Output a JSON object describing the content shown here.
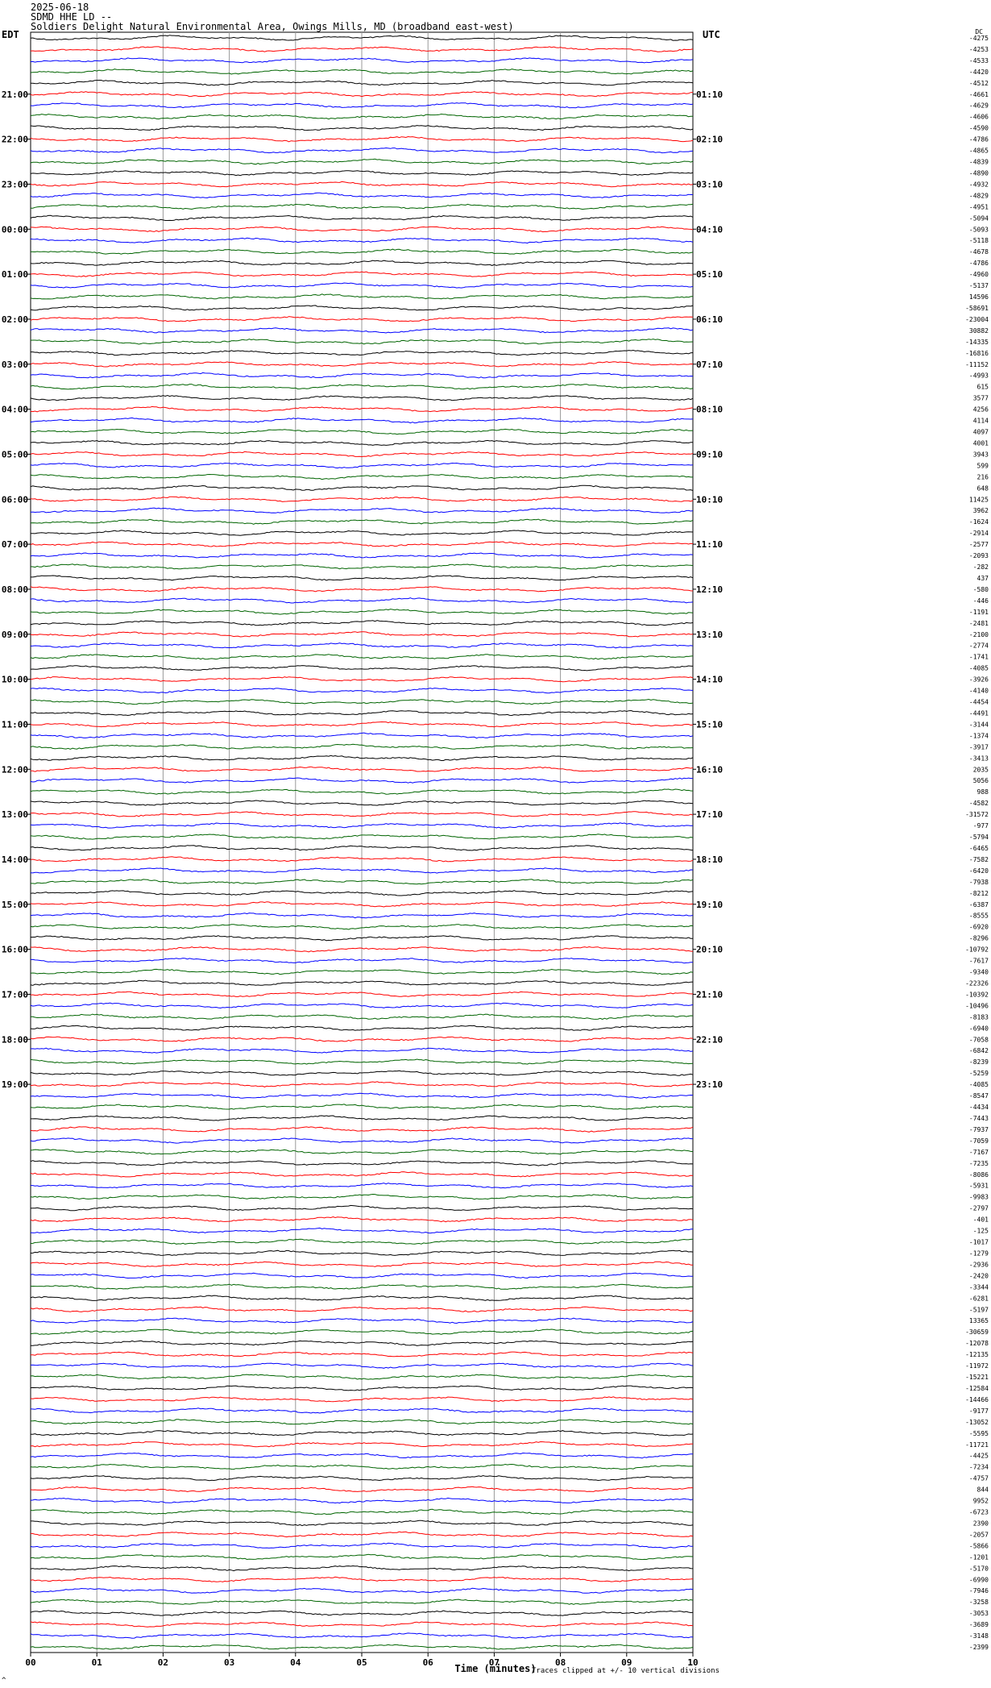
{
  "header": {
    "date": "2025-06-18",
    "station": "SDMD HHE LD --",
    "location": "Soldiers Delight Natural Environmental Area, Owings Mills, MD (broadband east-west)"
  },
  "left_corner": "EDT",
  "right_corner": "UTC",
  "footnote": "Traces clipped at +/- 10 vertical divisions",
  "footer_mark": "^",
  "chart_data": {
    "type": "line",
    "title": "",
    "xlabel": "Time (minutes)",
    "x_ticks": [
      "00",
      "01",
      "02",
      "03",
      "04",
      "05",
      "06",
      "07",
      "08",
      "09",
      "10"
    ],
    "xlim": [
      0,
      10
    ],
    "grid": "vertical lines each minute",
    "trace_minutes": 10,
    "trace_colors": [
      "#000000",
      "#ff0000",
      "#0000ff",
      "#006400"
    ],
    "left_hour_labels": [
      "21:00",
      "22:00",
      "23:00",
      "00:00",
      "01:00",
      "02:00",
      "03:00",
      "04:00",
      "05:00",
      "06:00",
      "07:00",
      "08:00",
      "09:00",
      "10:00",
      "11:00",
      "12:00",
      "13:00",
      "14:00",
      "15:00",
      "16:00",
      "17:00",
      "18:00",
      "19:00"
    ],
    "right_hour_labels": [
      "01:10",
      "02:10",
      "03:10",
      "04:10",
      "05:10",
      "06:10",
      "07:10",
      "08:10",
      "09:10",
      "10:10",
      "11:10",
      "12:10",
      "13:10",
      "14:10",
      "15:10",
      "16:10",
      "17:10",
      "18:10",
      "19:10",
      "20:10",
      "21:10",
      "22:10",
      "23:10"
    ],
    "right_first_label": "DC",
    "trace_offsets": [
      "-4275",
      "-4253",
      "-4533",
      "-4420",
      "-4512",
      "-4661",
      "-4629",
      "-4606",
      "-4590",
      "-4786",
      "-4865",
      "-4839",
      "-4890",
      "-4932",
      "-4829",
      "-4951",
      "-5094",
      "-5093",
      "-5118",
      "-4678",
      "-4786",
      "-4960",
      "-5137",
      "14596",
      "-58691",
      "-23004",
      "30882",
      "-14335",
      "-16816",
      "-11152",
      "-4993",
      "615",
      "3577",
      "4256",
      "4114",
      "4097",
      "4001",
      "3943",
      "599",
      "216",
      "648",
      "11425",
      "3962",
      "-1624",
      "-2914",
      "-2577",
      "-2093",
      "-282",
      "437",
      "-580",
      "-446",
      "-1191",
      "-2481",
      "-2100",
      "-2774",
      "-1741",
      "-4085",
      "-3926",
      "-4140",
      "-4454",
      "-4491",
      "-3144",
      "-1374",
      "-3917",
      "-3413",
      "2035",
      "5056",
      "988",
      "-4582",
      "-31572",
      "-977",
      "-5794",
      "-6465",
      "-7582",
      "-6420",
      "-7938",
      "-8212",
      "-6387",
      "-8555",
      "-6920",
      "-8296",
      "-10792",
      "-7617",
      "-9340",
      "-22326",
      "-10392",
      "-10496",
      "-8183",
      "-6940",
      "-7058",
      "-6842",
      "-8239",
      "-5259",
      "-4085",
      "-8547",
      "-4434",
      "-7443",
      "-7937",
      "-7059",
      "-7167",
      "-7235",
      "-8086",
      "-5931",
      "-9983",
      "-2797",
      "-401",
      "-125",
      "-1017",
      "-1279",
      "-2936",
      "-2420",
      "-3344",
      "-6281",
      "-5197",
      "13365",
      "-30659",
      "-12078",
      "-12135",
      "-11972",
      "-15221",
      "-12584",
      "-14466",
      "-9177",
      "-13052",
      "-5595",
      "-11721",
      "-4425",
      "-7234",
      "-4757",
      "844",
      "9952",
      "-6723",
      "2390",
      "-2057",
      "-5866",
      "-1201",
      "-5170",
      "-6990",
      "-7946",
      "-3258",
      "-3053",
      "-3689",
      "-3148",
      "-2399"
    ]
  }
}
